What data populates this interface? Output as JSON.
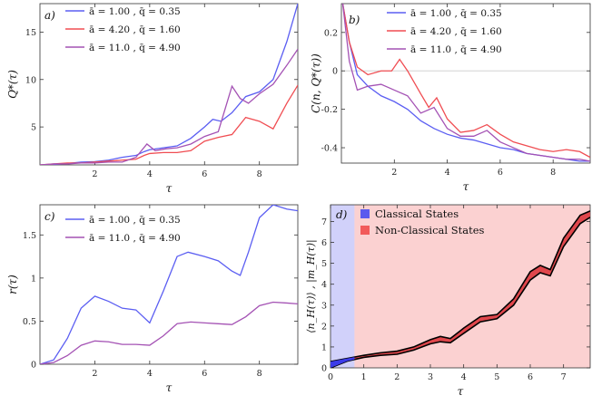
{
  "chart_data": [
    {
      "panel": "a)",
      "type": "line",
      "xlabel": "τ",
      "ylabel": "Q*(τ)",
      "xlim": [
        0,
        9.4
      ],
      "ylim": [
        1,
        18
      ],
      "xticks": [
        2,
        4,
        6,
        8
      ],
      "yticks": [
        5,
        10,
        15
      ],
      "grid": false,
      "legend_position": "top-left",
      "series": [
        {
          "name": "ā = 1.00 ,  q̄ = 0.35",
          "color": "#5b5ef2",
          "x": [
            0,
            0.5,
            1,
            1.5,
            2,
            2.5,
            3,
            3.5,
            3.8,
            4,
            4.5,
            5,
            5.5,
            6,
            6.3,
            6.6,
            7,
            7.5,
            8,
            8.5,
            9,
            9.4
          ],
          "y": [
            1,
            1.05,
            1.15,
            1.3,
            1.35,
            1.5,
            1.8,
            2.0,
            2.4,
            2.6,
            2.8,
            3.0,
            3.8,
            5.0,
            5.8,
            5.6,
            6.5,
            8.2,
            8.7,
            10,
            14,
            18
          ]
        },
        {
          "name": "ā = 4.20 ,  q̄ = 1.60",
          "color": "#f04d52",
          "x": [
            0,
            0.5,
            1,
            1.5,
            2,
            2.5,
            3,
            3.5,
            3.8,
            4,
            4.5,
            5,
            5.5,
            6,
            6.5,
            7,
            7.5,
            8,
            8.5,
            9,
            9.4
          ],
          "y": [
            1,
            1.1,
            1.2,
            1.2,
            1.3,
            1.4,
            1.5,
            1.6,
            2.0,
            2.2,
            2.3,
            2.3,
            2.5,
            3.5,
            3.9,
            4.2,
            6.0,
            5.6,
            4.8,
            7.5,
            9.4
          ]
        },
        {
          "name": "ā = 11.0 ,  q̄ = 4.90",
          "color": "#a452b4",
          "x": [
            0,
            0.5,
            1,
            1.5,
            2,
            2.5,
            3,
            3.5,
            3.9,
            4.2,
            4.6,
            5,
            5.5,
            6,
            6.5,
            7,
            7.3,
            7.6,
            8,
            8.5,
            9,
            9.4
          ],
          "y": [
            1,
            1.1,
            1.1,
            1.2,
            1.2,
            1.3,
            1.3,
            1.8,
            3.2,
            2.5,
            2.7,
            2.8,
            3.2,
            4.0,
            4.5,
            9.3,
            8.0,
            7.5,
            8.5,
            9.5,
            11.5,
            13.2
          ]
        }
      ]
    },
    {
      "panel": "b)",
      "type": "line",
      "xlabel": "τ",
      "ylabel": "C(n, Q*(τ))",
      "xlim": [
        0,
        9.4
      ],
      "ylim": [
        -0.48,
        0.35
      ],
      "xticks": [
        2,
        4,
        6,
        8
      ],
      "yticks": [
        -0.4,
        -0.2,
        0.0,
        0.2
      ],
      "zero_line": true,
      "grid": false,
      "legend_position": "top-right",
      "series": [
        {
          "name": "ā = 1.00 ,  q̄ = 0.35",
          "color": "#5b5ef2",
          "x": [
            0.05,
            0.3,
            0.6,
            1,
            1.5,
            2,
            2.5,
            3,
            3.5,
            4,
            4.5,
            5,
            5.5,
            6,
            6.5,
            7,
            7.5,
            8,
            8.5,
            9,
            9.4
          ],
          "y": [
            0.35,
            0.15,
            -0.02,
            -0.08,
            -0.13,
            -0.16,
            -0.2,
            -0.26,
            -0.3,
            -0.33,
            -0.35,
            -0.36,
            -0.38,
            -0.4,
            -0.41,
            -0.43,
            -0.44,
            -0.45,
            -0.46,
            -0.47,
            -0.47
          ]
        },
        {
          "name": "ā = 4.20 ,  q̄ = 1.60",
          "color": "#f04d52",
          "x": [
            0.05,
            0.3,
            0.6,
            1,
            1.5,
            1.9,
            2.2,
            2.5,
            3,
            3.3,
            3.6,
            4,
            4.5,
            5,
            5.5,
            6,
            6.5,
            7,
            7.5,
            8,
            8.5,
            9,
            9.4
          ],
          "y": [
            0.35,
            0.15,
            0.02,
            -0.02,
            0.0,
            0.0,
            0.06,
            0.0,
            -0.12,
            -0.19,
            -0.14,
            -0.25,
            -0.32,
            -0.31,
            -0.28,
            -0.33,
            -0.37,
            -0.39,
            -0.41,
            -0.42,
            -0.41,
            -0.42,
            -0.45
          ]
        },
        {
          "name": "ā = 11.0 ,  q̄ = 4.90",
          "color": "#a452b4",
          "x": [
            0.05,
            0.3,
            0.6,
            1,
            1.5,
            2,
            2.5,
            3,
            3.5,
            4,
            4.5,
            5,
            5.5,
            6,
            6.5,
            7,
            7.5,
            8,
            8.5,
            9,
            9.4
          ],
          "y": [
            0.35,
            0.05,
            -0.1,
            -0.08,
            -0.07,
            -0.1,
            -0.13,
            -0.22,
            -0.19,
            -0.3,
            -0.34,
            -0.34,
            -0.31,
            -0.37,
            -0.4,
            -0.43,
            -0.44,
            -0.45,
            -0.46,
            -0.46,
            -0.47
          ]
        }
      ]
    },
    {
      "panel": "c)",
      "type": "line",
      "xlabel": "τ",
      "ylabel": "r(τ)",
      "xlim": [
        0,
        9.4
      ],
      "ylim": [
        0,
        1.85
      ],
      "xticks": [
        2,
        4,
        6,
        8
      ],
      "yticks": [
        0.0,
        0.5,
        1.0,
        1.5
      ],
      "grid": false,
      "legend_position": "top-left",
      "series": [
        {
          "name": "ā = 1.00 ,  q̄ = 0.35",
          "color": "#5b5ef2",
          "x": [
            0,
            0.5,
            1,
            1.5,
            2,
            2.5,
            3,
            3.5,
            4,
            4.5,
            5,
            5.4,
            6,
            6.5,
            7,
            7.3,
            7.6,
            8,
            8.5,
            9,
            9.4
          ],
          "y": [
            0,
            0.05,
            0.3,
            0.65,
            0.79,
            0.73,
            0.65,
            0.63,
            0.48,
            0.85,
            1.25,
            1.3,
            1.25,
            1.2,
            1.08,
            1.03,
            1.3,
            1.7,
            1.85,
            1.8,
            1.78
          ]
        },
        {
          "name": "ā = 11.0 ,  q̄ = 4.90",
          "color": "#a452b4",
          "x": [
            0,
            0.5,
            1,
            1.5,
            2,
            2.5,
            3,
            3.5,
            4,
            4.5,
            5,
            5.5,
            6,
            6.5,
            7,
            7.5,
            8,
            8.5,
            9,
            9.4
          ],
          "y": [
            0,
            0.02,
            0.1,
            0.22,
            0.27,
            0.26,
            0.23,
            0.23,
            0.22,
            0.33,
            0.47,
            0.49,
            0.48,
            0.47,
            0.46,
            0.55,
            0.68,
            0.72,
            0.71,
            0.7
          ]
        }
      ]
    },
    {
      "panel": "d)",
      "type": "area",
      "xlabel": "τ",
      "ylabel": "⟨n_H(τ)⟩ ,  |m_H(τ)|",
      "xlim": [
        0,
        7.8
      ],
      "ylim": [
        0,
        7.8
      ],
      "xticks": [
        0,
        1,
        2,
        3,
        4,
        5,
        6,
        7
      ],
      "yticks": [
        0,
        1,
        2,
        3,
        4,
        5,
        6,
        7
      ],
      "grid": false,
      "legend_position": "top-left",
      "regions": [
        {
          "name": "Classical States",
          "color": "#5a5aee",
          "x_range": [
            0,
            0.72
          ]
        },
        {
          "name": "Non-Classical States",
          "color": "#f25a5a",
          "x_range": [
            0.72,
            7.8
          ]
        }
      ],
      "series": [
        {
          "name": "upper",
          "x": [
            0,
            0.5,
            1,
            1.5,
            2,
            2.5,
            3,
            3.3,
            3.6,
            4,
            4.5,
            5,
            5.5,
            6,
            6.3,
            6.6,
            7,
            7.5,
            7.8
          ],
          "y": [
            0.3,
            0.45,
            0.6,
            0.72,
            0.8,
            1.0,
            1.35,
            1.5,
            1.4,
            1.9,
            2.45,
            2.55,
            3.3,
            4.6,
            4.9,
            4.7,
            6.2,
            7.3,
            7.5
          ]
        },
        {
          "name": "lower",
          "x": [
            0,
            0.5,
            1,
            1.5,
            2,
            2.5,
            3,
            3.3,
            3.6,
            4,
            4.5,
            5,
            5.5,
            6,
            6.3,
            6.6,
            7,
            7.5,
            7.8
          ],
          "y": [
            0.0,
            0.32,
            0.5,
            0.6,
            0.65,
            0.85,
            1.15,
            1.25,
            1.2,
            1.65,
            2.2,
            2.35,
            3.0,
            4.2,
            4.55,
            4.4,
            5.8,
            6.9,
            7.2
          ]
        }
      ]
    }
  ]
}
